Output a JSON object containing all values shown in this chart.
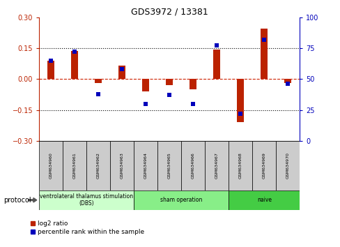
{
  "title": "GDS3972 / 13381",
  "samples": [
    "GSM634960",
    "GSM634961",
    "GSM634962",
    "GSM634963",
    "GSM634964",
    "GSM634965",
    "GSM634966",
    "GSM634967",
    "GSM634968",
    "GSM634969",
    "GSM634970"
  ],
  "log2_ratio": [
    0.09,
    0.135,
    -0.02,
    0.065,
    -0.06,
    -0.03,
    -0.05,
    0.145,
    -0.21,
    0.245,
    -0.02
  ],
  "percentile_rank": [
    65,
    72,
    38,
    58,
    30,
    37,
    30,
    77,
    22,
    82,
    46
  ],
  "ylim_left": [
    -0.3,
    0.3
  ],
  "ylim_right": [
    0,
    100
  ],
  "yticks_left": [
    -0.3,
    -0.15,
    0,
    0.15,
    0.3
  ],
  "yticks_right": [
    0,
    25,
    50,
    75,
    100
  ],
  "hlines": [
    -0.15,
    0.15
  ],
  "bar_color": "#bb2200",
  "dot_color": "#0000bb",
  "dashed_line_color": "#cc2200",
  "protocols": [
    {
      "label": "ventrolateral thalamus stimulation\n(DBS)",
      "start": 0,
      "end": 3,
      "color": "#ccffcc"
    },
    {
      "label": "sham operation",
      "start": 4,
      "end": 7,
      "color": "#88ee88"
    },
    {
      "label": "naive",
      "start": 8,
      "end": 10,
      "color": "#44cc44"
    }
  ],
  "legend_bar_label": "log2 ratio",
  "legend_dot_label": "percentile rank within the sample",
  "protocol_label": "protocol",
  "bar_width": 0.3,
  "dot_size": 5
}
